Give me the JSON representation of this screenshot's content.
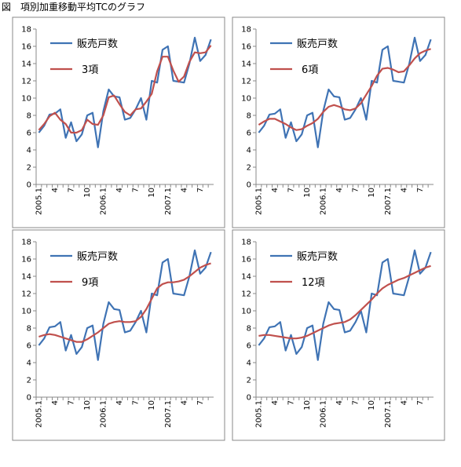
{
  "title": "図　項別加重移動平均TCのグラフ",
  "chart_data": [
    {
      "type": "line",
      "ylim": [
        0,
        18
      ],
      "yticks": [
        0,
        2,
        4,
        6,
        8,
        10,
        12,
        14,
        16,
        18
      ],
      "categories": [
        "2005.1",
        null,
        null,
        "4",
        null,
        null,
        "7",
        null,
        null,
        "10",
        null,
        null,
        "2006.1",
        null,
        null,
        "4",
        null,
        null,
        "7",
        null,
        null,
        "10",
        null,
        null,
        "2007.1",
        null,
        null,
        "4",
        null,
        null,
        "7",
        null,
        null
      ],
      "series": [
        {
          "name": "販売戸数",
          "color": "#3f73b4",
          "values": [
            6.0,
            6.8,
            8.1,
            8.2,
            8.7,
            5.4,
            7.2,
            5.0,
            5.8,
            8.0,
            8.3,
            4.3,
            8.5,
            11.0,
            10.2,
            10.1,
            7.5,
            7.7,
            8.7,
            10.0,
            7.5,
            12.0,
            11.8,
            15.6,
            16.0,
            12.0,
            11.9,
            11.8,
            14.0,
            17.0,
            14.3,
            15.0,
            16.8
          ]
        },
        {
          "name": "3項",
          "color": "#c0504d",
          "values": [
            6.3,
            7.0,
            7.9,
            8.3,
            7.5,
            7.0,
            6.0,
            6.0,
            6.3,
            7.5,
            7.0,
            6.9,
            8.0,
            10.1,
            10.3,
            9.3,
            8.4,
            8.0,
            8.7,
            8.8,
            9.6,
            10.5,
            13.1,
            14.8,
            14.8,
            13.2,
            11.9,
            12.5,
            14.2,
            15.3,
            15.2,
            15.3,
            16.1
          ]
        }
      ]
    },
    {
      "type": "line",
      "ylim": [
        0,
        18
      ],
      "yticks": [
        0,
        2,
        4,
        6,
        8,
        10,
        12,
        14,
        16,
        18
      ],
      "categories": [
        "2005.1",
        null,
        null,
        "4",
        null,
        null,
        "7",
        null,
        null,
        "10",
        null,
        null,
        "2006.1",
        null,
        null,
        "4",
        null,
        null,
        "7",
        null,
        null,
        "10",
        null,
        null,
        "2007.1",
        null,
        null,
        "4",
        null,
        null,
        "7",
        null,
        null
      ],
      "series": [
        {
          "name": "販売戸数",
          "color": "#3f73b4",
          "values": [
            6.0,
            6.8,
            8.1,
            8.2,
            8.7,
            5.4,
            7.2,
            5.0,
            5.8,
            8.0,
            8.3,
            4.3,
            8.5,
            11.0,
            10.2,
            10.1,
            7.5,
            7.7,
            8.7,
            10.0,
            7.5,
            12.0,
            11.8,
            15.6,
            16.0,
            12.0,
            11.9,
            11.8,
            14.0,
            17.0,
            14.3,
            15.0,
            16.8
          ]
        },
        {
          "name": "6項",
          "color": "#c0504d",
          "values": [
            6.9,
            7.3,
            7.6,
            7.6,
            7.3,
            7.0,
            6.6,
            6.3,
            6.4,
            6.8,
            7.1,
            7.6,
            8.4,
            9.0,
            9.2,
            9.0,
            8.7,
            8.6,
            8.8,
            9.4,
            10.4,
            11.4,
            12.6,
            13.4,
            13.5,
            13.3,
            13.0,
            13.1,
            13.8,
            14.6,
            15.2,
            15.5,
            15.7
          ]
        }
      ]
    },
    {
      "type": "line",
      "ylim": [
        0,
        18
      ],
      "yticks": [
        0,
        2,
        4,
        6,
        8,
        10,
        12,
        14,
        16,
        18
      ],
      "categories": [
        "2005.1",
        null,
        null,
        "4",
        null,
        null,
        "7",
        null,
        null,
        "10",
        null,
        null,
        "2006.1",
        null,
        null,
        "4",
        null,
        null,
        "7",
        null,
        null,
        "10",
        null,
        null,
        "2007.1",
        null,
        null,
        "4",
        null,
        null,
        "7",
        null,
        null
      ],
      "series": [
        {
          "name": "販売戸数",
          "color": "#3f73b4",
          "values": [
            6.0,
            6.8,
            8.1,
            8.2,
            8.7,
            5.4,
            7.2,
            5.0,
            5.8,
            8.0,
            8.3,
            4.3,
            8.5,
            11.0,
            10.2,
            10.1,
            7.5,
            7.7,
            8.7,
            10.0,
            7.5,
            12.0,
            11.8,
            15.6,
            16.0,
            12.0,
            11.9,
            11.8,
            14.0,
            17.0,
            14.3,
            15.0,
            16.8
          ]
        },
        {
          "name": "9項",
          "color": "#c0504d",
          "values": [
            7.0,
            7.2,
            7.3,
            7.2,
            7.0,
            6.8,
            6.6,
            6.4,
            6.4,
            6.7,
            7.1,
            7.5,
            8.0,
            8.5,
            8.7,
            8.8,
            8.7,
            8.7,
            8.8,
            9.3,
            10.2,
            11.4,
            12.6,
            13.1,
            13.3,
            13.3,
            13.4,
            13.6,
            14.0,
            14.5,
            15.0,
            15.3,
            15.5
          ]
        }
      ]
    },
    {
      "type": "line",
      "ylim": [
        0,
        18
      ],
      "yticks": [
        0,
        2,
        4,
        6,
        8,
        10,
        12,
        14,
        16,
        18
      ],
      "categories": [
        "2005.1",
        null,
        null,
        "4",
        null,
        null,
        "7",
        null,
        null,
        "10",
        null,
        null,
        "2006.1",
        null,
        null,
        "4",
        null,
        null,
        "7",
        null,
        null,
        "10",
        null,
        null,
        "2007.1",
        null,
        null,
        "4",
        null,
        null,
        "7",
        null,
        null
      ],
      "series": [
        {
          "name": "販売戸数",
          "color": "#3f73b4",
          "values": [
            6.0,
            6.8,
            8.1,
            8.2,
            8.7,
            5.4,
            7.2,
            5.0,
            5.8,
            8.0,
            8.3,
            4.3,
            8.5,
            11.0,
            10.2,
            10.1,
            7.5,
            7.7,
            8.7,
            10.0,
            7.5,
            12.0,
            11.8,
            15.6,
            16.0,
            12.0,
            11.9,
            11.8,
            14.0,
            17.0,
            14.3,
            15.0,
            16.8
          ]
        },
        {
          "name": "12項",
          "color": "#c0504d",
          "values": [
            7.1,
            7.2,
            7.2,
            7.1,
            7.0,
            6.9,
            6.8,
            6.8,
            6.9,
            7.1,
            7.4,
            7.7,
            8.0,
            8.3,
            8.5,
            8.6,
            8.7,
            9.0,
            9.5,
            10.1,
            10.7,
            11.3,
            12.0,
            12.6,
            13.0,
            13.3,
            13.6,
            13.8,
            14.1,
            14.4,
            14.7,
            15.0,
            15.2
          ]
        }
      ]
    }
  ]
}
